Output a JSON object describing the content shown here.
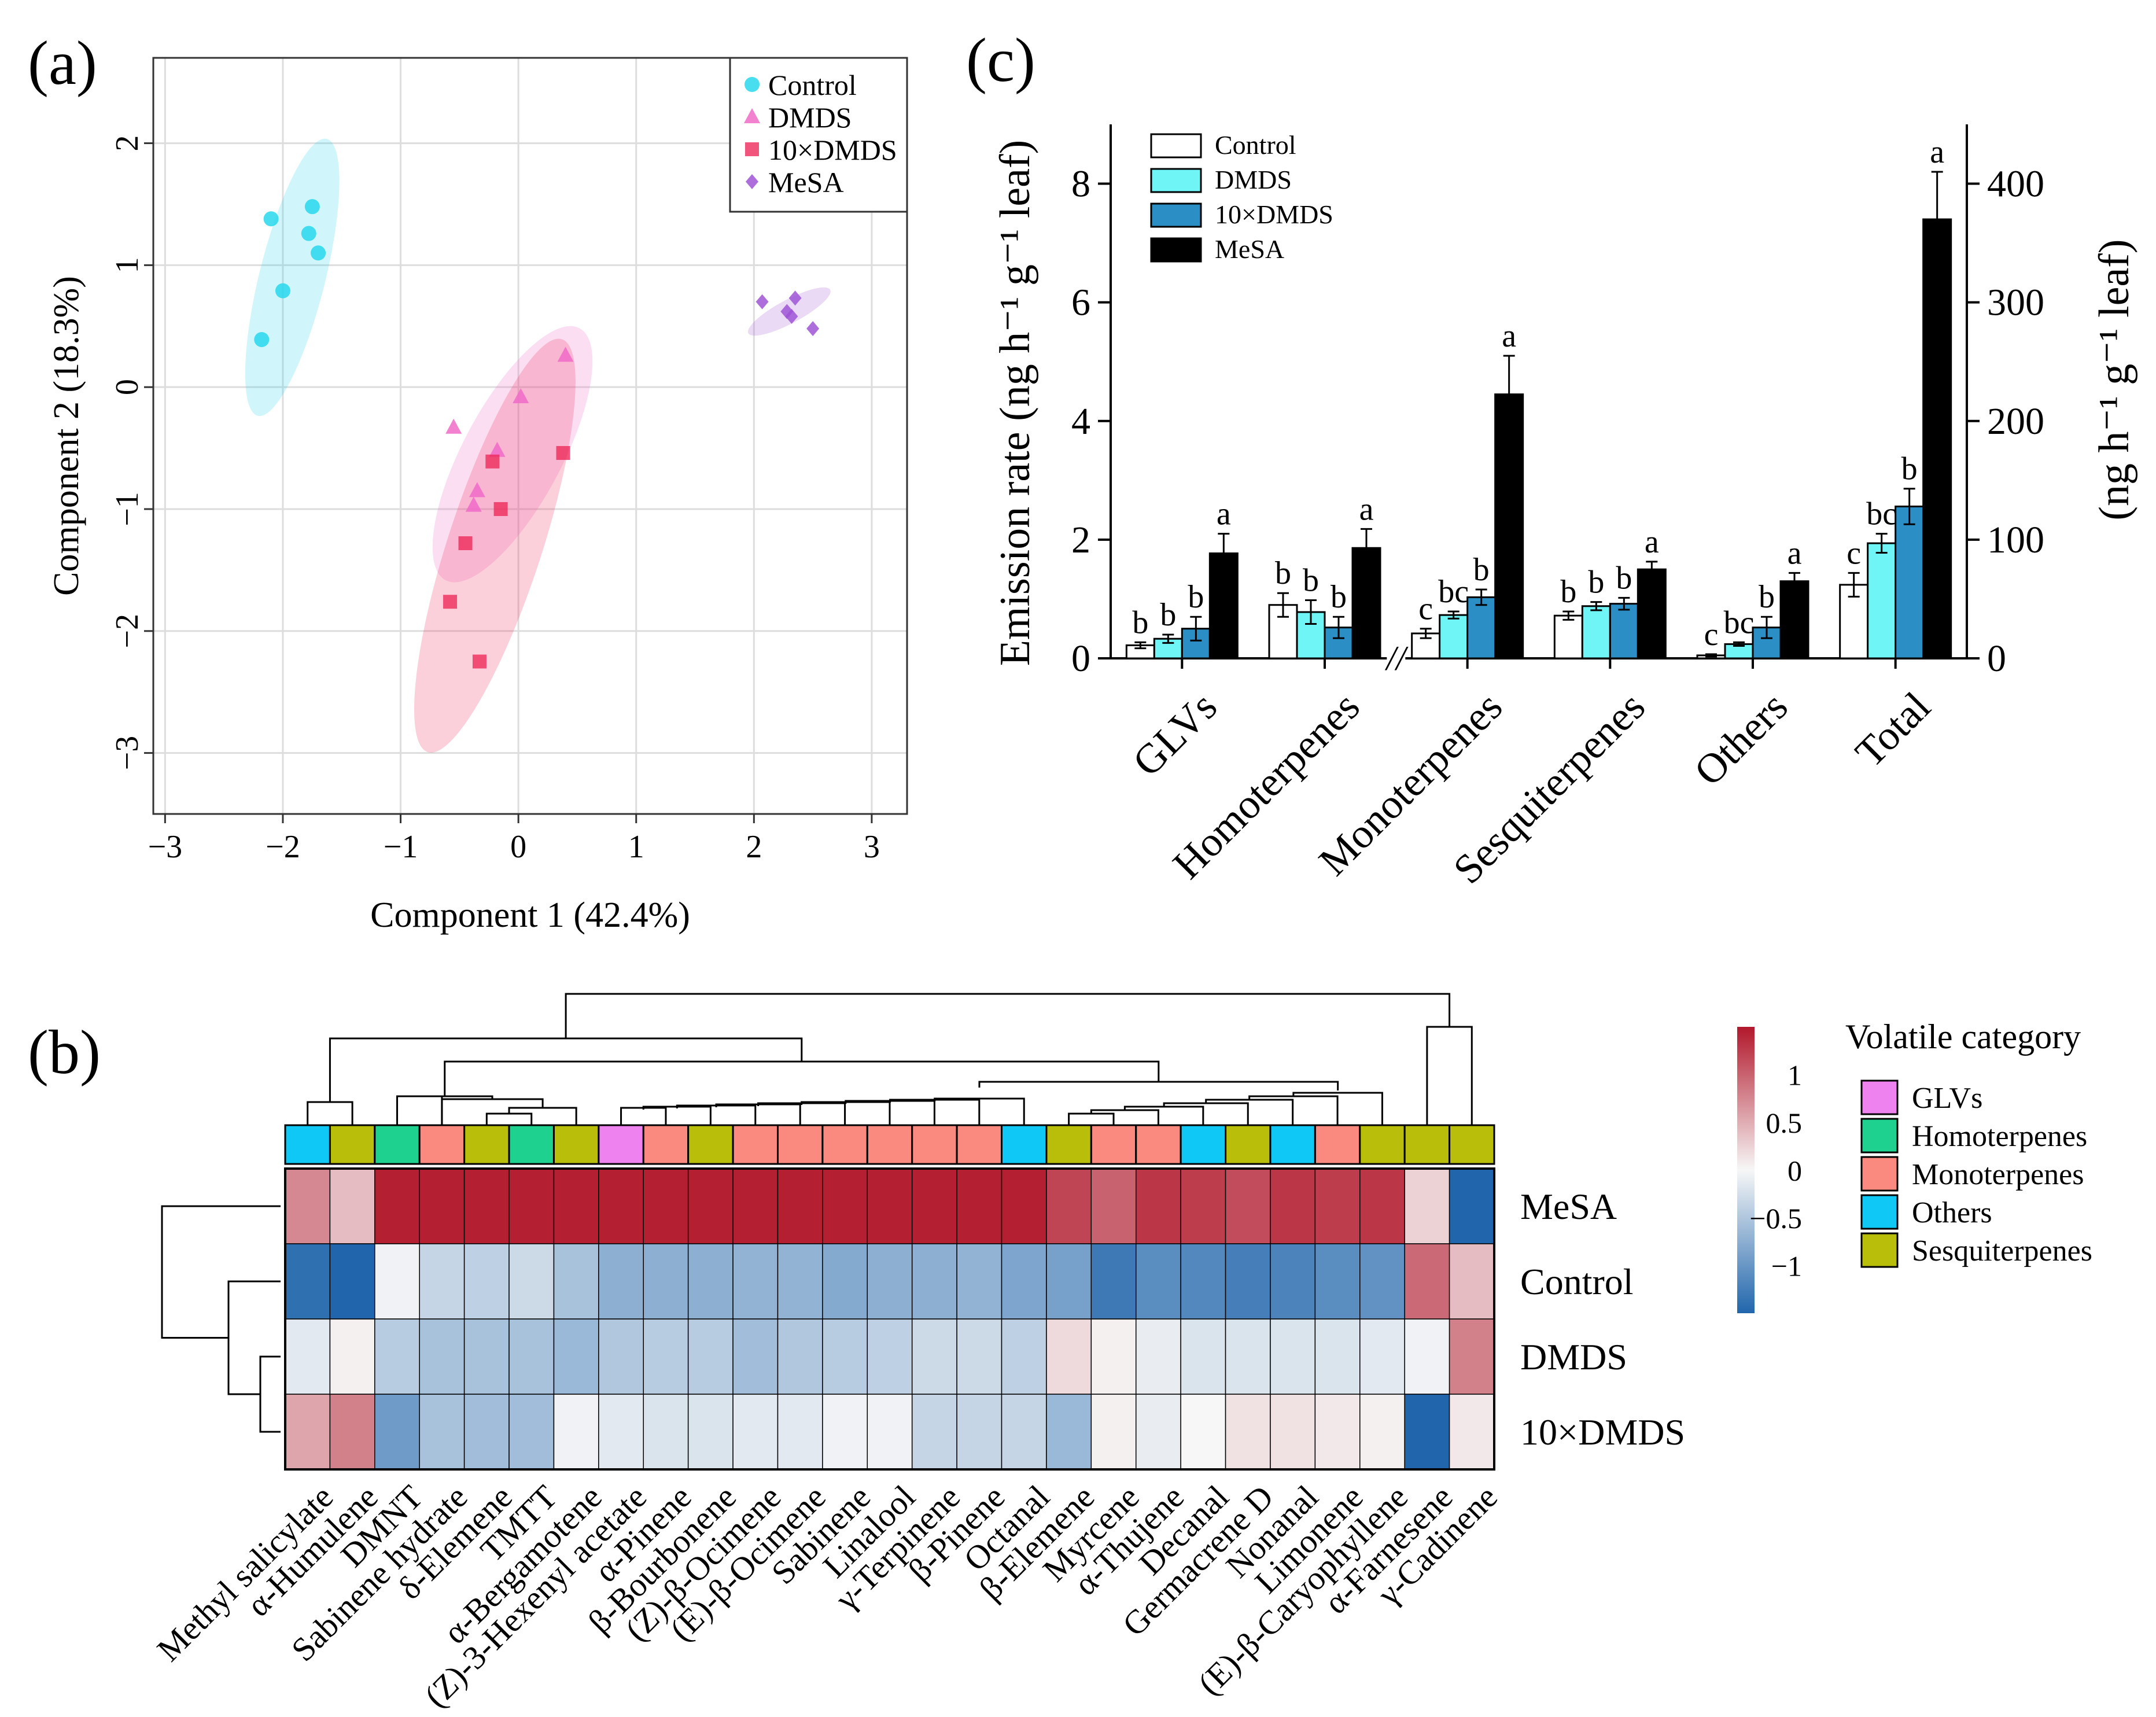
{
  "panel_labels": {
    "a": "(a)",
    "b": "(b)",
    "c": "(c)"
  },
  "colors": {
    "control": "#28D7EC",
    "dmds": "#F06BC8",
    "dmds10": "#EE2A5A",
    "mesa": "#9F55D6",
    "bar_control": "#FFFFFF",
    "bar_dmds": "#6FF5F5",
    "bar_dmds10": "#2B8FC6",
    "bar_mesa": "#000000",
    "heat_high": "#B2182B",
    "heat_mid": "#F7F7F7",
    "heat_low": "#2166AC",
    "cat_GLVs": "#EE82EE",
    "cat_Homoterpenes": "#1FD18F",
    "cat_Monoterpenes": "#FA8A80",
    "cat_Others": "#10C8F5",
    "cat_Sesquiterpenes": "#B8BE0A"
  },
  "chart_data": [
    {
      "id": "a",
      "type": "scatter",
      "xlabel": "Component 1 (42.4%)",
      "ylabel": "Component 2 (18.3%)",
      "xlim": [
        -3.1,
        3.3
      ],
      "ylim": [
        -3.5,
        2.7
      ],
      "xticks": [
        -3,
        -2,
        -1,
        0,
        1,
        2,
        3
      ],
      "yticks": [
        -3,
        -2,
        -1,
        0,
        1,
        2
      ],
      "xtick_labels": [
        "−3",
        "−2",
        "−1",
        "0",
        "1",
        "2",
        "3"
      ],
      "ytick_labels": [
        "−3",
        "−2",
        "−1",
        "0",
        "1",
        "2"
      ],
      "grid": true,
      "legend_position": "top-right",
      "series": [
        {
          "name": "Control",
          "marker": "circle",
          "color_key": "control",
          "points": [
            [
              -2.1,
              1.38
            ],
            [
              -1.75,
              1.48
            ],
            [
              -1.78,
              1.26
            ],
            [
              -1.7,
              1.1
            ],
            [
              -2.0,
              0.79
            ],
            [
              -2.18,
              0.39
            ]
          ],
          "ellipse": {
            "cx": -1.92,
            "cy": 0.9,
            "rx": 1.17,
            "ry": 0.28,
            "angle": -76
          }
        },
        {
          "name": "DMDS",
          "marker": "triangle",
          "color_key": "dmds",
          "points": [
            [
              0.4,
              0.26
            ],
            [
              0.02,
              -0.08
            ],
            [
              -0.55,
              -0.33
            ],
            [
              -0.18,
              -0.52
            ],
            [
              -0.35,
              -0.85
            ],
            [
              -0.38,
              -0.97
            ]
          ],
          "ellipse": {
            "cx": -0.05,
            "cy": -0.55,
            "rx": 1.17,
            "ry": 0.42,
            "angle": -62
          }
        },
        {
          "name": "10×DMDS",
          "marker": "square",
          "color_key": "dmds10",
          "points": [
            [
              0.38,
              -0.54
            ],
            [
              -0.22,
              -0.61
            ],
            [
              -0.15,
              -1.0
            ],
            [
              -0.45,
              -1.28
            ],
            [
              -0.58,
              -1.76
            ],
            [
              -0.33,
              -2.25
            ]
          ],
          "ellipse": {
            "cx": -0.2,
            "cy": -1.3,
            "rx": 1.78,
            "ry": 0.4,
            "angle": -72
          }
        },
        {
          "name": "MeSA",
          "marker": "diamond",
          "color_key": "mesa",
          "points": [
            [
              2.07,
              0.7
            ],
            [
              2.35,
              0.73
            ],
            [
              2.28,
              0.62
            ],
            [
              2.32,
              0.58
            ],
            [
              2.5,
              0.48
            ]
          ],
          "ellipse": {
            "cx": 2.3,
            "cy": 0.62,
            "rx": 0.38,
            "ry": 0.1,
            "angle": -28
          }
        }
      ]
    },
    {
      "id": "b",
      "type": "heatmap",
      "rows": [
        "MeSA",
        "Control",
        "DMDS",
        "10×DMDS"
      ],
      "columns": [
        "Methyl salicylate",
        "α-Humulene",
        "DMNT",
        "Sabinene hydrate",
        "δ-Elemene",
        "TMTT",
        "α-Bergamotene",
        "(Z)-3-Hexenyl acetate",
        "α-Pinene",
        "β-Bourbonene",
        "(Z)-β-Ocimene",
        "(E)-β-Ocimene",
        "Sabinene",
        "Linalool",
        "γ-Terpinene",
        "β-Pinene",
        "Octanal",
        "β-Elemene",
        "Myrcene",
        "α-Thujene",
        "Decanal",
        "Germacrene D",
        "Nonanal",
        "Limonene",
        "(E)-β-Caryophyllene",
        "α-Farnesene",
        "γ-Cadinene"
      ],
      "column_categories": [
        "Others",
        "Sesquiterpenes",
        "Homoterpenes",
        "Monoterpenes",
        "Sesquiterpenes",
        "Homoterpenes",
        "Sesquiterpenes",
        "GLVs",
        "Monoterpenes",
        "Sesquiterpenes",
        "Monoterpenes",
        "Monoterpenes",
        "Monoterpenes",
        "Monoterpenes",
        "Monoterpenes",
        "Monoterpenes",
        "Others",
        "Sesquiterpenes",
        "Monoterpenes",
        "Monoterpenes",
        "Others",
        "Sesquiterpenes",
        "Others",
        "Monoterpenes",
        "Sesquiterpenes",
        "Sesquiterpenes",
        "Sesquiterpenes"
      ],
      "values": [
        [
          0.75,
          0.4,
          1.45,
          1.45,
          1.45,
          1.45,
          1.45,
          1.45,
          1.45,
          1.45,
          1.45,
          1.45,
          1.45,
          1.45,
          1.45,
          1.45,
          1.45,
          1.2,
          1.0,
          1.3,
          1.25,
          1.15,
          1.3,
          1.25,
          1.3,
          0.25,
          -1.5
        ],
        [
          -1.4,
          -1.5,
          -0.05,
          -0.35,
          -0.4,
          -0.3,
          -0.55,
          -0.75,
          -0.75,
          -0.75,
          -0.7,
          -0.7,
          -0.8,
          -0.75,
          -0.75,
          -0.7,
          -0.85,
          -0.9,
          -1.3,
          -1.1,
          -1.15,
          -1.25,
          -1.2,
          -1.1,
          -1.05,
          0.95,
          0.4
        ],
        [
          -0.15,
          0.05,
          -0.45,
          -0.55,
          -0.55,
          -0.55,
          -0.65,
          -0.5,
          -0.45,
          -0.45,
          -0.6,
          -0.5,
          -0.45,
          -0.4,
          -0.3,
          -0.3,
          -0.4,
          0.2,
          0.05,
          -0.1,
          -0.2,
          -0.2,
          -0.2,
          -0.2,
          -0.15,
          -0.05,
          0.8
        ],
        [
          0.55,
          0.8,
          -0.95,
          -0.55,
          -0.6,
          -0.6,
          -0.05,
          -0.15,
          -0.2,
          -0.2,
          -0.15,
          -0.15,
          -0.05,
          -0.05,
          -0.35,
          -0.35,
          -0.35,
          -0.65,
          0.05,
          -0.1,
          0.0,
          0.15,
          0.15,
          0.1,
          0.05,
          -1.5,
          0.1
        ]
      ],
      "colorbar_ticks": [
        1,
        0.5,
        0,
        -0.5,
        -1
      ],
      "colorbar_labels": [
        "1",
        "0.5",
        "0",
        "−0.5",
        "−1"
      ],
      "colorbar_range": [
        -1.5,
        1.5
      ],
      "legend_title": "Volatile category",
      "categories": [
        "GLVs",
        "Homoterpenes",
        "Monoterpenes",
        "Others",
        "Sesquiterpenes"
      ]
    },
    {
      "id": "c",
      "type": "bar",
      "categories": [
        "GLVs",
        "Homoterpenes",
        "Monoterpenes",
        "Sesquiterpenes",
        "Others",
        "Total"
      ],
      "ylabel": "Emission rate (ng h⁻¹ g⁻¹ leaf)",
      "ylabel_right": "(ng h⁻¹ g⁻¹ leaf)",
      "ylim": [
        0,
        9
      ],
      "yticks": [
        0,
        2,
        4,
        6,
        8
      ],
      "ylim_right": [
        0,
        450
      ],
      "yticks_right": [
        0,
        100,
        200,
        300,
        400
      ],
      "right_axis_categories": [
        "Total"
      ],
      "axis_break_label": "//",
      "legend_position": "top-left",
      "series": [
        {
          "name": "Control",
          "color_key": "bar_control",
          "values": [
            0.22,
            0.9,
            0.42,
            0.72,
            0.05,
            62
          ],
          "errors": [
            0.05,
            0.2,
            0.08,
            0.07,
            0.02,
            10
          ],
          "letters": [
            "b",
            "b",
            "c",
            "b",
            "c",
            "c"
          ]
        },
        {
          "name": "DMDS",
          "color_key": "bar_dmds",
          "values": [
            0.33,
            0.78,
            0.73,
            0.88,
            0.24,
            97
          ],
          "errors": [
            0.07,
            0.2,
            0.06,
            0.07,
            0.03,
            8
          ],
          "letters": [
            "b",
            "b",
            "bc",
            "b",
            "bc",
            "bc"
          ]
        },
        {
          "name": "10×DMDS",
          "color_key": "bar_dmds10",
          "values": [
            0.5,
            0.52,
            1.03,
            0.92,
            0.52,
            128
          ],
          "errors": [
            0.2,
            0.18,
            0.13,
            0.1,
            0.18,
            15
          ],
          "letters": [
            "b",
            "b",
            "b",
            "b",
            "b",
            "b"
          ]
        },
        {
          "name": "MeSA",
          "color_key": "bar_mesa",
          "values": [
            1.77,
            1.86,
            4.45,
            1.5,
            1.3,
            370
          ],
          "errors": [
            0.33,
            0.32,
            0.65,
            0.13,
            0.14,
            40
          ],
          "letters": [
            "a",
            "a",
            "a",
            "a",
            "a",
            "a"
          ]
        }
      ]
    }
  ]
}
